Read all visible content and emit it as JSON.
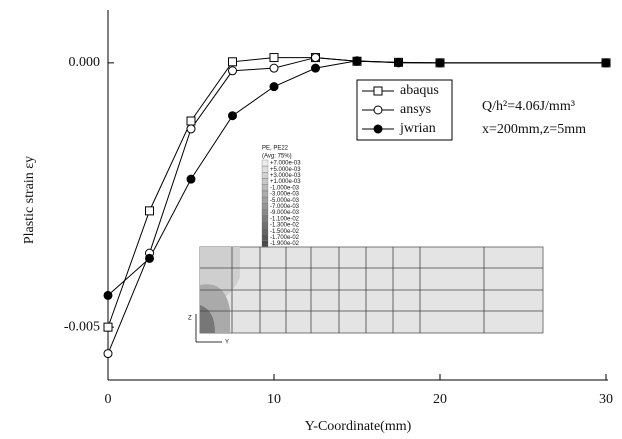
{
  "chart_data": {
    "type": "line",
    "xlabel": "Y-Coordinate(mm)",
    "ylabel": "Plastic strain εy",
    "annotations": [
      "Q/h²=4.06J/mm³",
      "x=200mm,z=5mm"
    ],
    "x": [
      0,
      2.5,
      5,
      7.5,
      10,
      12.5,
      15,
      17.5,
      20,
      30
    ],
    "xlim": [
      0,
      30
    ],
    "xticks": [
      0,
      10,
      20,
      30
    ],
    "ylim": [
      -0.006,
      0.001
    ],
    "yticks": [
      {
        "value": -0.005,
        "label": "-0.005"
      },
      {
        "value": 0,
        "label": "0.000"
      }
    ],
    "legend": "upper-center",
    "series": [
      {
        "name": "abaqus",
        "color": "#000000",
        "marker": "square",
        "values": [
          -0.005,
          -0.0028,
          -0.0011,
          2e-05,
          0.0001,
          0.0001,
          3e-05,
          1e-05,
          0,
          0
        ]
      },
      {
        "name": "ansys",
        "color": "#000000",
        "marker": "circle",
        "values": [
          -0.0055,
          -0.0036,
          -0.00125,
          -0.00015,
          -0.0001,
          0.0001,
          3e-05,
          1e-05,
          0,
          0
        ]
      },
      {
        "name": "jwrian",
        "color": "#000000",
        "marker": "filled-circle",
        "values": [
          -0.0044,
          -0.0037,
          -0.0022,
          -0.001,
          -0.00045,
          -0.0001,
          4e-05,
          0,
          0,
          0
        ]
      }
    ]
  },
  "inset": {
    "title": "PE, PE22",
    "subtitle": "(Avg: 75%)",
    "levels": [
      "+7.000e-03",
      "+5.000e-03",
      "+3.000e-03",
      "+1.000e-03",
      "-1.000e-03",
      "-3.000e-03",
      "-5.000e-03",
      "-7.000e-03",
      "-9.000e-03",
      "-1.100e-02",
      "-1.300e-02",
      "-1.500e-02",
      "-1.700e-02",
      "-1.900e-02"
    ],
    "axis_labels": [
      "Z",
      "Y"
    ]
  }
}
